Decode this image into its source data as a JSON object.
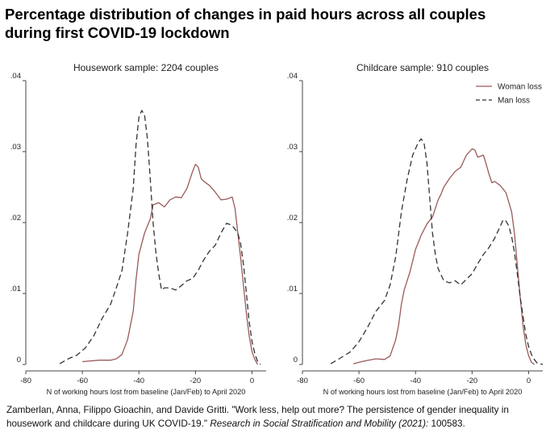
{
  "title": {
    "line1": "Percentage distribution of changes in paid hours across all couples",
    "line2": "during first COVID-19 lockdown"
  },
  "caption": {
    "part1": "Zamberlan, Anna, Filippo Gioachin, and Davide Gritti. \"Work less, help out more? The persistence of gender inequality in",
    "part2": "housework and childcare during UK COVID-19.\"",
    "part3": "Research in Social Stratification and Mobility (2021):",
    "part4": "100583."
  },
  "chart_data": [
    {
      "type": "line",
      "title": "Housework sample: 2204 couples",
      "xlabel": "N of working hours lost from baseline (Jan/Feb) to April 2020",
      "ylabel": "",
      "xlim": [
        -80,
        5
      ],
      "ylim": [
        0,
        0.04
      ],
      "xticks": [
        -80,
        -60,
        -40,
        -20,
        0
      ],
      "yticks": [
        0,
        0.01,
        0.02,
        0.03,
        0.04
      ],
      "yticklabels": [
        "0",
        ".01",
        ".02",
        ".03",
        ".04"
      ],
      "grid": false,
      "legend": "none",
      "series": [
        {
          "name": "Woman loss",
          "color": "#9a5a5a",
          "dash": "solid",
          "points": [
            [
              -60,
              0.0004
            ],
            [
              -54,
              0.0006
            ],
            [
              -50,
              0.0006
            ],
            [
              -48,
              0.0008
            ],
            [
              -46,
              0.0014
            ],
            [
              -44,
              0.0035
            ],
            [
              -42,
              0.0075
            ],
            [
              -41,
              0.012
            ],
            [
              -40,
              0.0155
            ],
            [
              -38,
              0.0185
            ],
            [
              -36,
              0.0205
            ],
            [
              -35,
              0.0225
            ],
            [
              -33,
              0.0228
            ],
            [
              -31,
              0.0222
            ],
            [
              -29,
              0.0232
            ],
            [
              -27,
              0.0236
            ],
            [
              -25,
              0.0235
            ],
            [
              -23,
              0.0248
            ],
            [
              -21,
              0.0272
            ],
            [
              -20,
              0.0282
            ],
            [
              -19,
              0.0278
            ],
            [
              -18,
              0.0262
            ],
            [
              -17,
              0.0258
            ],
            [
              -15,
              0.0252
            ],
            [
              -13,
              0.0243
            ],
            [
              -11,
              0.0232
            ],
            [
              -9,
              0.0233
            ],
            [
              -7,
              0.0236
            ],
            [
              -6,
              0.022
            ],
            [
              -5,
              0.0185
            ],
            [
              -4,
              0.015
            ],
            [
              -3,
              0.011
            ],
            [
              -2,
              0.0072
            ],
            [
              -1,
              0.004
            ],
            [
              0,
              0.0018
            ],
            [
              1,
              0.0007
            ],
            [
              2,
              0
            ]
          ]
        },
        {
          "name": "Man loss",
          "color": "#333333",
          "dash": "dashed",
          "points": [
            [
              -68,
              0.0001
            ],
            [
              -65,
              0.0008
            ],
            [
              -62,
              0.0013
            ],
            [
              -59,
              0.0023
            ],
            [
              -56,
              0.004
            ],
            [
              -53,
              0.0065
            ],
            [
              -50,
              0.0085
            ],
            [
              -48,
              0.0108
            ],
            [
              -46,
              0.0132
            ],
            [
              -44,
              0.0185
            ],
            [
              -42,
              0.0248
            ],
            [
              -41,
              0.031
            ],
            [
              -40,
              0.0348
            ],
            [
              -39,
              0.0358
            ],
            [
              -38,
              0.0352
            ],
            [
              -37,
              0.0318
            ],
            [
              -36,
              0.0262
            ],
            [
              -35,
              0.02
            ],
            [
              -34,
              0.0158
            ],
            [
              -33,
              0.0128
            ],
            [
              -32,
              0.0105
            ],
            [
              -31,
              0.0108
            ],
            [
              -29,
              0.0108
            ],
            [
              -27,
              0.0105
            ],
            [
              -25,
              0.0111
            ],
            [
              -23,
              0.0118
            ],
            [
              -21,
              0.0121
            ],
            [
              -19,
              0.0133
            ],
            [
              -17,
              0.0148
            ],
            [
              -15,
              0.016
            ],
            [
              -13,
              0.0168
            ],
            [
              -11,
              0.0185
            ],
            [
              -9,
              0.0199
            ],
            [
              -7,
              0.0196
            ],
            [
              -5,
              0.0185
            ],
            [
              -4,
              0.017
            ],
            [
              -3,
              0.014
            ],
            [
              -2,
              0.01
            ],
            [
              -1,
              0.006
            ],
            [
              0,
              0.0032
            ],
            [
              1,
              0.0015
            ],
            [
              2,
              0.0004
            ],
            [
              3,
              0
            ]
          ]
        }
      ]
    },
    {
      "type": "line",
      "title": "Childcare sample: 910 couples",
      "xlabel": "N of working hours lost from baseline (Jan/Feb) to April 2020",
      "ylabel": "",
      "xlim": [
        -80,
        5
      ],
      "ylim": [
        0,
        0.04
      ],
      "xticks": [
        -80,
        -60,
        -40,
        -20,
        0
      ],
      "yticks": [
        0,
        0.01,
        0.02,
        0.03,
        0.04
      ],
      "yticklabels": [
        "0",
        ".01",
        ".02",
        ".03",
        ".04"
      ],
      "grid": false,
      "legend": "top-right",
      "series": [
        {
          "name": "Woman loss",
          "color": "#9a5a5a",
          "dash": "solid",
          "points": [
            [
              -62,
              0.0001
            ],
            [
              -58,
              0.0005
            ],
            [
              -54,
              0.0008
            ],
            [
              -51,
              0.0007
            ],
            [
              -49,
              0.0012
            ],
            [
              -47,
              0.0035
            ],
            [
              -46,
              0.0055
            ],
            [
              -45,
              0.0085
            ],
            [
              -44,
              0.0105
            ],
            [
              -42,
              0.013
            ],
            [
              -40,
              0.0162
            ],
            [
              -38,
              0.0182
            ],
            [
              -36,
              0.0198
            ],
            [
              -34,
              0.0208
            ],
            [
              -33,
              0.022
            ],
            [
              -32,
              0.0232
            ],
            [
              -31,
              0.024
            ],
            [
              -30,
              0.025
            ],
            [
              -28,
              0.0262
            ],
            [
              -26,
              0.0272
            ],
            [
              -24,
              0.0278
            ],
            [
              -22,
              0.0295
            ],
            [
              -20,
              0.0304
            ],
            [
              -19,
              0.0302
            ],
            [
              -18,
              0.0292
            ],
            [
              -16,
              0.0295
            ],
            [
              -15,
              0.0282
            ],
            [
              -14,
              0.0268
            ],
            [
              -13,
              0.0256
            ],
            [
              -12,
              0.0258
            ],
            [
              -10,
              0.0252
            ],
            [
              -8,
              0.0242
            ],
            [
              -6,
              0.0215
            ],
            [
              -5,
              0.0185
            ],
            [
              -4,
              0.014
            ],
            [
              -3,
              0.0095
            ],
            [
              -2,
              0.0055
            ],
            [
              -1,
              0.0028
            ],
            [
              0,
              0.0012
            ],
            [
              1,
              0.0003
            ],
            [
              2,
              0
            ]
          ]
        },
        {
          "name": "Man loss",
          "color": "#333333",
          "dash": "dashed",
          "points": [
            [
              -70,
              0.0001
            ],
            [
              -67,
              0.0008
            ],
            [
              -63,
              0.0018
            ],
            [
              -60,
              0.0032
            ],
            [
              -57,
              0.0052
            ],
            [
              -54,
              0.0075
            ],
            [
              -51,
              0.009
            ],
            [
              -49,
              0.0112
            ],
            [
              -47,
              0.0152
            ],
            [
              -45,
              0.0215
            ],
            [
              -43,
              0.026
            ],
            [
              -41,
              0.0295
            ],
            [
              -39,
              0.0313
            ],
            [
              -38,
              0.0318
            ],
            [
              -37,
              0.0312
            ],
            [
              -36,
              0.0285
            ],
            [
              -35,
              0.0235
            ],
            [
              -34,
              0.0185
            ],
            [
              -33,
              0.0155
            ],
            [
              -32,
              0.0135
            ],
            [
              -30,
              0.0118
            ],
            [
              -28,
              0.0115
            ],
            [
              -26,
              0.0118
            ],
            [
              -24,
              0.0112
            ],
            [
              -22,
              0.012
            ],
            [
              -20,
              0.0128
            ],
            [
              -18,
              0.0142
            ],
            [
              -16,
              0.0155
            ],
            [
              -14,
              0.0165
            ],
            [
              -12,
              0.0178
            ],
            [
              -10,
              0.0195
            ],
            [
              -9,
              0.0204
            ],
            [
              -8,
              0.0202
            ],
            [
              -7,
              0.0195
            ],
            [
              -6,
              0.018
            ],
            [
              -5,
              0.0158
            ],
            [
              -4,
              0.0128
            ],
            [
              -3,
              0.0095
            ],
            [
              -2,
              0.0068
            ],
            [
              -1,
              0.0042
            ],
            [
              0,
              0.0025
            ],
            [
              1,
              0.0014
            ],
            [
              2,
              0.0007
            ],
            [
              3,
              0.0002
            ],
            [
              5,
              0
            ]
          ]
        }
      ]
    }
  ]
}
